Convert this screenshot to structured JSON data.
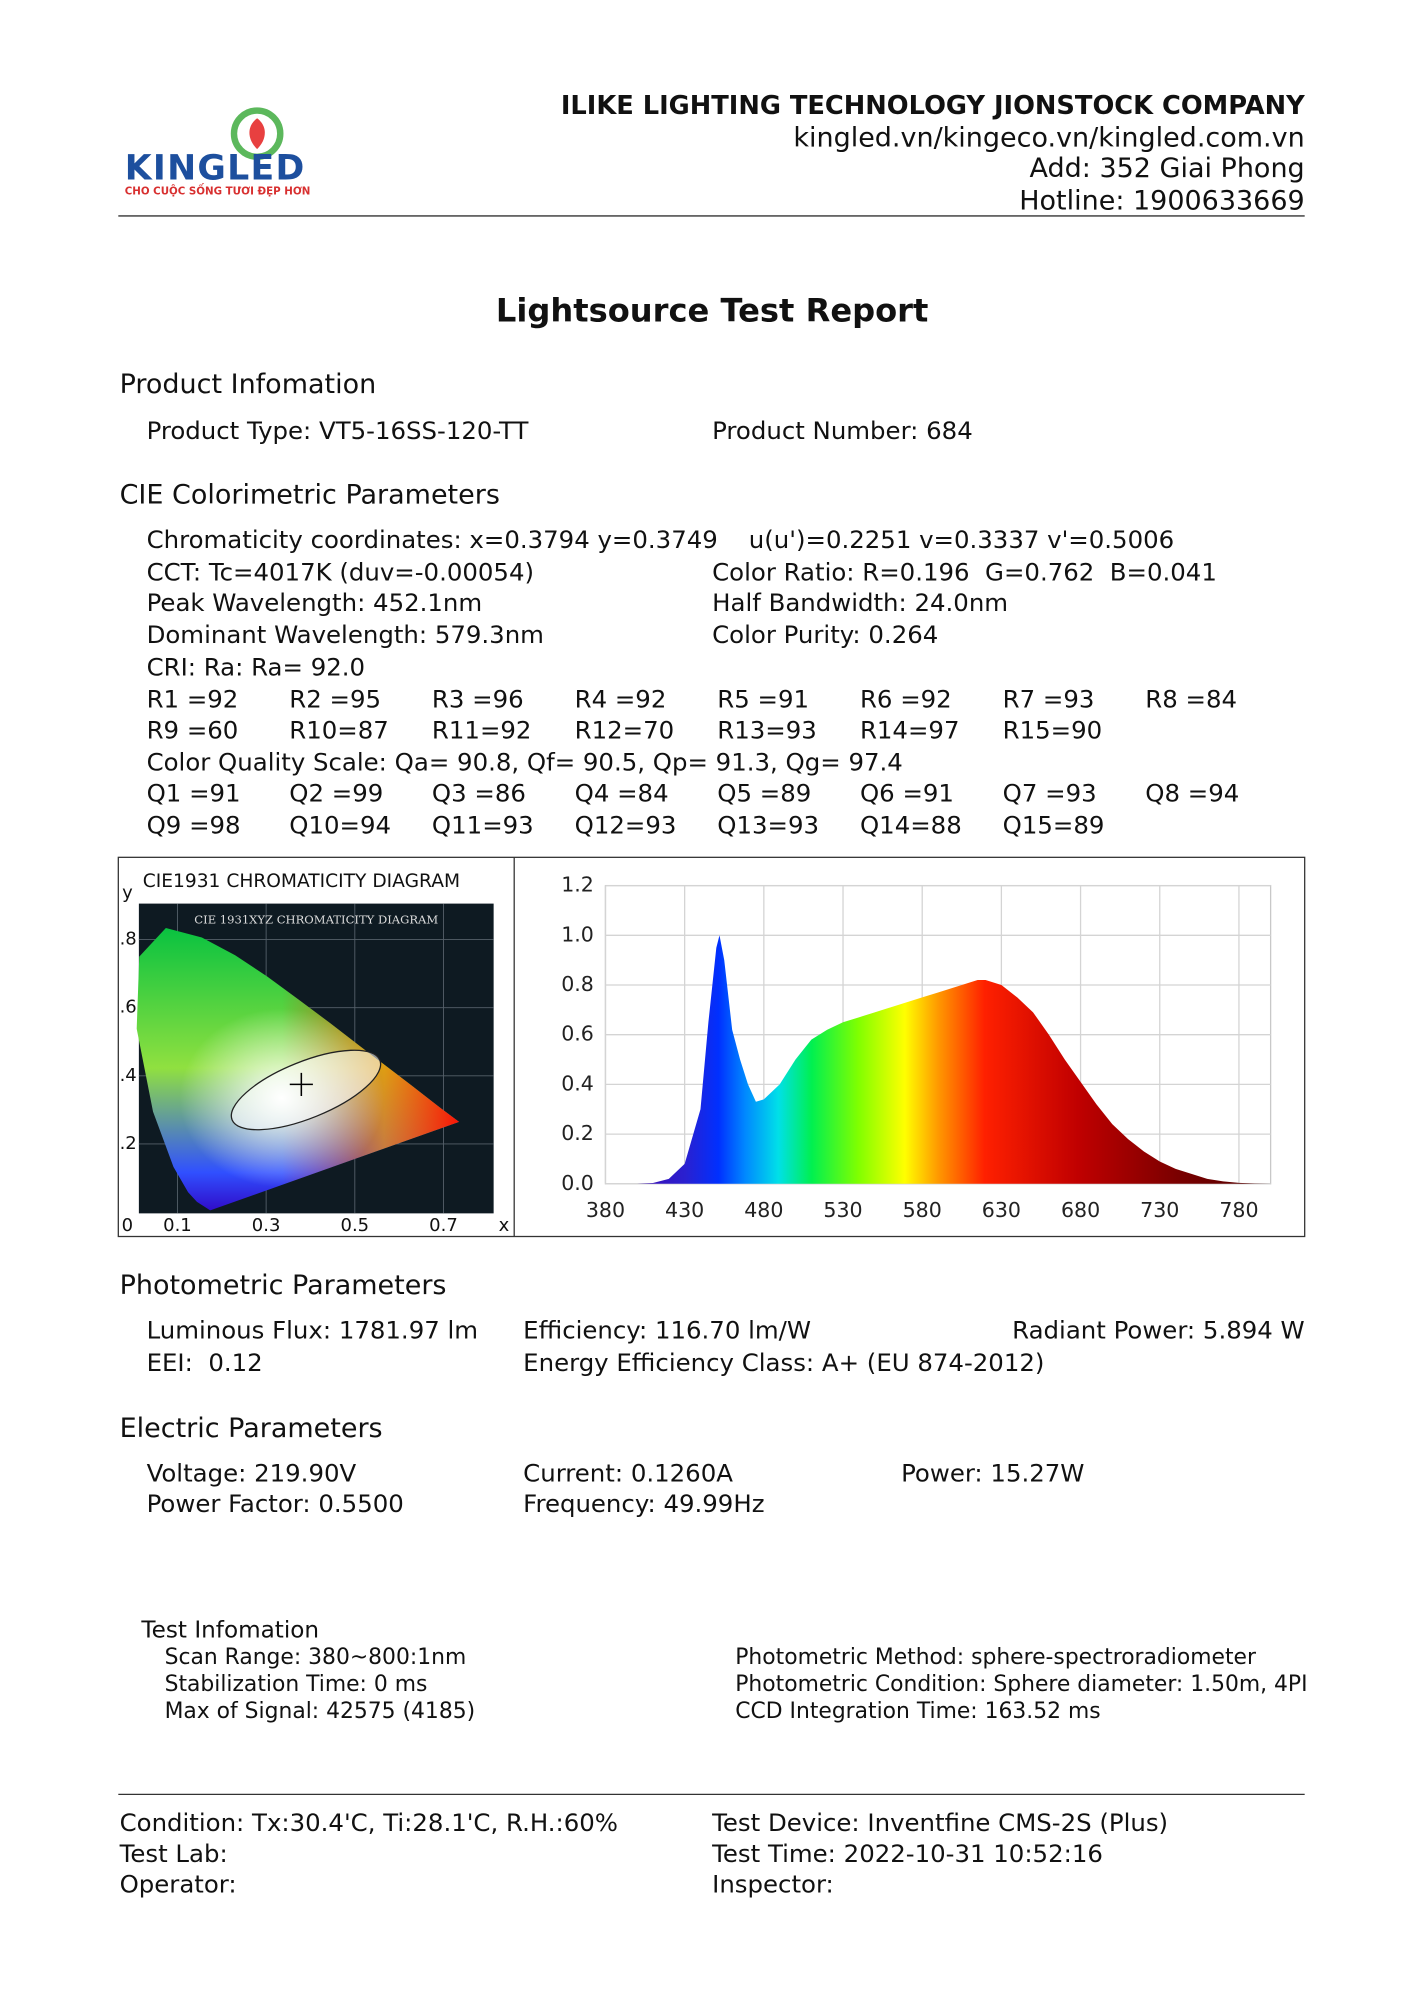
{
  "header": {
    "logo": "KINGLED",
    "slogan": "CHO CUỘC SỐNG TƯƠI ĐẸP HƠN",
    "company": "ILIKE LIGHTING TECHNOLOGY JIONSTOCK COMPANY",
    "website": "kingled.vn/kingeco.vn/kingled.com.vn",
    "address": "Add: 352 Giai Phong",
    "hotline": "Hotline: 1900633669"
  },
  "title": "Lightsource Test Report",
  "product": {
    "heading": "Product Infomation",
    "type": "Product Type: VT5-16SS-120-TT",
    "number": "Product Number: 684"
  },
  "cie": {
    "heading": "CIE Colorimetric Parameters",
    "chromaticity": "Chromaticity coordinates: x=0.3794 y=0.3749    u(u')=0.2251 v=0.3337 v'=0.5006",
    "cct": "CCT: Tc=4017K (duv=-0.00054)",
    "color_ratio": "Color Ratio: R=0.196  G=0.762  B=0.041",
    "peak": "Peak Wavelength: 452.1nm",
    "half_bandwidth": "Half Bandwidth: 24.0nm",
    "dominant": "Dominant Wavelength: 579.3nm",
    "purity": "Color Purity: 0.264",
    "cri": "CRI: Ra: Ra= 92.0",
    "r_rows": [
      [
        "R1 =92",
        "R2 =95",
        "R3 =96",
        "R4 =92",
        "R5 =91",
        "R6 =92",
        "R7 =93",
        "R8 =84"
      ],
      [
        "R9 =60",
        "R10=87",
        "R11=92",
        "R12=70",
        "R13=93",
        "R14=97",
        "R15=90"
      ]
    ],
    "cqs": "Color Quality Scale: Qa= 90.8, Qf= 90.5, Qp= 91.3, Qg= 97.4",
    "q_rows": [
      [
        "Q1 =91",
        "Q2 =99",
        "Q3 =86",
        "Q4 =84",
        "Q5 =89",
        "Q6 =91",
        "Q7 =93",
        "Q8 =94"
      ],
      [
        "Q9 =98",
        "Q10=94",
        "Q11=93",
        "Q12=93",
        "Q13=93",
        "Q14=88",
        "Q15=89"
      ]
    ]
  },
  "cie_diagram": {
    "title": "CIE1931 CHROMATICITY DIAGRAM",
    "image_title": "CIE 1931XYZ CHROMATICITY DIAGRAM",
    "xlabel": "x",
    "ylabel": "y",
    "xticks": [
      0,
      0.1,
      0.3,
      0.5,
      0.7
    ],
    "yticks": [
      {
        "value": 0.2,
        "label": ".2"
      },
      {
        "value": 0.4,
        "label": ".4"
      },
      {
        "value": 0.6,
        "label": ".6"
      },
      {
        "value": 0.8,
        "label": ".8"
      }
    ],
    "marker": {
      "x": 0.3794,
      "y": 0.3749
    }
  },
  "spectrum": {
    "type": "area",
    "x": [
      380,
      390,
      400,
      410,
      420,
      430,
      440,
      445,
      450,
      452,
      455,
      460,
      465,
      470,
      475,
      480,
      490,
      500,
      510,
      520,
      530,
      540,
      550,
      560,
      570,
      580,
      590,
      600,
      610,
      615,
      620,
      630,
      640,
      650,
      660,
      670,
      680,
      690,
      700,
      710,
      720,
      730,
      740,
      750,
      760,
      770,
      780,
      790,
      800
    ],
    "values": [
      0,
      0,
      0,
      0.003,
      0.02,
      0.08,
      0.3,
      0.65,
      0.95,
      1.0,
      0.9,
      0.62,
      0.5,
      0.4,
      0.33,
      0.34,
      0.4,
      0.5,
      0.58,
      0.62,
      0.65,
      0.67,
      0.69,
      0.71,
      0.73,
      0.75,
      0.77,
      0.79,
      0.81,
      0.82,
      0.82,
      0.8,
      0.75,
      0.69,
      0.6,
      0.5,
      0.41,
      0.32,
      0.24,
      0.18,
      0.13,
      0.09,
      0.06,
      0.04,
      0.02,
      0.01,
      0.004,
      0.001,
      0
    ],
    "xlim": [
      380,
      800
    ],
    "xticks": [
      380,
      430,
      480,
      530,
      580,
      630,
      680,
      730,
      780
    ],
    "ylim": [
      0,
      1.2
    ],
    "yticks": [
      {
        "value": 0,
        "label": "0.0"
      },
      0.2,
      0.4,
      0.6,
      0.8,
      {
        "value": 1,
        "label": "1.0"
      },
      1.2
    ],
    "grid": true
  },
  "photometric": {
    "heading": "Photometric Parameters",
    "flux": "Luminous Flux: 1781.97 lm",
    "efficiency": "Efficiency: 116.70 lm/W",
    "radiant": "Radiant Power: 5.894 W",
    "eei": "EEI:  0.12",
    "energy_class": "Energy Efficiency Class: A+ (EU 874-2012)"
  },
  "electric": {
    "heading": "Electric Parameters",
    "voltage": "Voltage: 219.90V",
    "current": "Current: 0.1260A",
    "power": "Power: 15.27W",
    "power_factor": "Power Factor: 0.5500",
    "frequency": "Frequency: 49.99Hz"
  },
  "test_info": {
    "heading": "Test Infomation",
    "scan_range": "Scan Range: 380~800:1nm",
    "stabilization": "Stabilization Time: 0 ms",
    "max_signal": "Max of Signal: 42575 (4185)",
    "method": "Photometric Method: sphere-spectroradiometer",
    "condition": "Photometric Condition: Sphere diameter: 1.50m, 4PI",
    "ccd": "CCD Integration Time: 163.52 ms"
  },
  "footer": {
    "condition": "Condition: Tx:30.4'C, Ti:28.1'C, R.H.:60%",
    "test_lab": "Test Lab:",
    "operator": "Operator:",
    "device": "Test Device: Inventfine CMS-2S (Plus)",
    "time": "Test Time: 2022-10-31 10:52:16",
    "inspector": "Inspector:"
  }
}
